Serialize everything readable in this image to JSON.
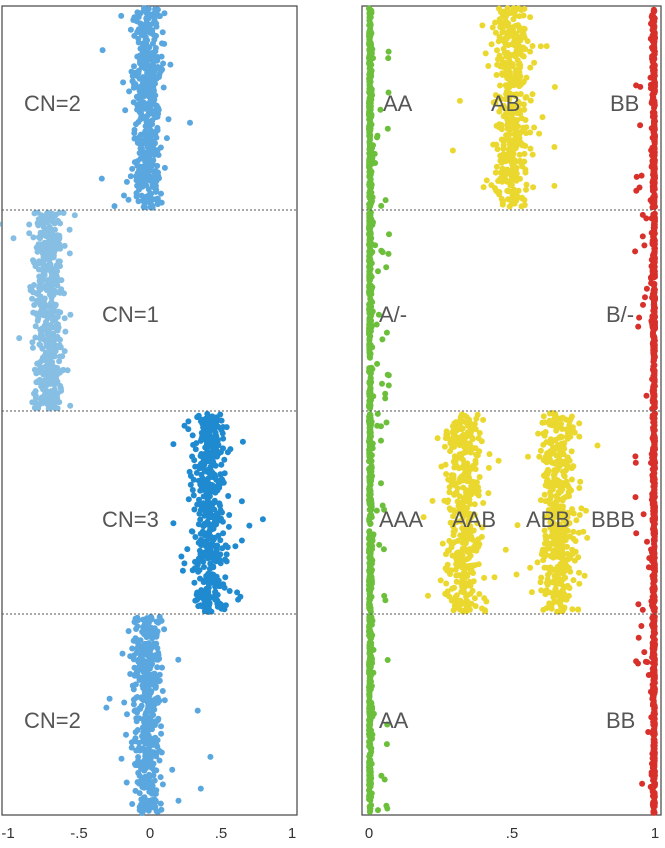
{
  "chart_data": [
    {
      "type": "scatter",
      "panel": "left",
      "title": "",
      "xlabel": "",
      "ylabel": "",
      "xlim": [
        -1,
        1
      ],
      "xticks": [
        -1,
        -0.5,
        0,
        0.5,
        1
      ],
      "xtick_labels": [
        "-1",
        "-.5",
        "0",
        ".5",
        "1"
      ],
      "grid": false,
      "colors": {
        "cn2": "#5aa7e0",
        "cn1": "#86bfe3",
        "cn3": "#1f8ad0",
        "separator": "#555555",
        "frame": "#444444"
      },
      "segments": [
        {
          "label": "CN=2",
          "cluster_center_x": -0.02,
          "cluster_spread": 0.05,
          "color_key": "cn2"
        },
        {
          "label": "CN=1",
          "cluster_center_x": -0.72,
          "cluster_spread": 0.05,
          "color_key": "cn1"
        },
        {
          "label": "CN=3",
          "cluster_center_x": 0.42,
          "cluster_spread": 0.05,
          "color_key": "cn3"
        },
        {
          "label": "CN=2",
          "cluster_center_x": -0.02,
          "cluster_spread": 0.05,
          "color_key": "cn2"
        }
      ]
    },
    {
      "type": "scatter",
      "panel": "right",
      "title": "",
      "xlabel": "",
      "ylabel": "",
      "xlim": [
        0,
        1
      ],
      "xticks": [
        0,
        0.5,
        1
      ],
      "xtick_labels": [
        "0",
        ".5",
        "1"
      ],
      "grid": false,
      "colors": {
        "low": "#6cbf3b",
        "mid": "#ebd82f",
        "high": "#d8302a",
        "separator": "#555555",
        "frame": "#444444"
      },
      "segments": [
        {
          "labels": [
            "AA",
            "AB",
            "BB"
          ],
          "cluster_centers_x": [
            0.0,
            0.5,
            1.0
          ]
        },
        {
          "labels": [
            "A/-",
            "B/-"
          ],
          "cluster_centers_x": [
            0.0,
            1.0
          ]
        },
        {
          "labels": [
            "AAA",
            "AAB",
            "ABB",
            "BBB"
          ],
          "cluster_centers_x": [
            0.0,
            0.33,
            0.66,
            1.0
          ]
        },
        {
          "labels": [
            "AA",
            "BB"
          ],
          "cluster_centers_x": [
            0.0,
            1.0
          ]
        }
      ]
    }
  ]
}
